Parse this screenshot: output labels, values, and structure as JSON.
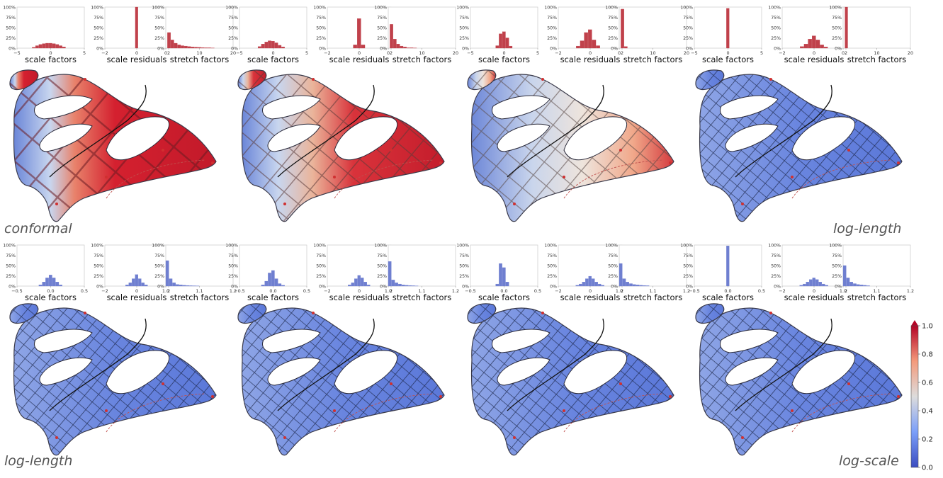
{
  "labels": {
    "top_left": "conformal",
    "top_right": "log-length",
    "bottom_left": "log-length",
    "bottom_right": "log-scale"
  },
  "colors": {
    "red": "#c0414b",
    "blue": "#6f7fd0",
    "axis": "#9a9a9a"
  },
  "colorbar": {
    "ticks": [
      "0.0",
      "0.2",
      "0.4",
      "0.6",
      "0.8",
      "1.0"
    ],
    "colormap": "coolwarm"
  },
  "chart_data": [
    {
      "type": "bar",
      "panel": "row1-set1",
      "title": "scale factors",
      "color": "red",
      "ylim": [
        0,
        1
      ],
      "yticks": [
        "0%",
        "25%",
        "50%",
        "75%",
        "100%"
      ],
      "xlim": [
        -5,
        5
      ],
      "xticks": [
        "−5",
        "0",
        "5"
      ],
      "bins": [
        -2.5,
        -2,
        -1.5,
        -1,
        -0.5,
        0,
        0.5,
        1,
        1.5,
        2
      ],
      "values": [
        0.02,
        0.06,
        0.09,
        0.11,
        0.12,
        0.12,
        0.11,
        0.09,
        0.06,
        0.03
      ]
    },
    {
      "type": "bar",
      "panel": "row1-set1",
      "title": "scale residuals",
      "color": "red",
      "ylim": [
        0,
        1
      ],
      "yticks": [
        "0%",
        "25%",
        "50%",
        "75%",
        "100%"
      ],
      "xlim": [
        -2,
        2
      ],
      "xticks": [
        "−2",
        "0",
        "2"
      ],
      "bins": [
        0
      ],
      "values": [
        1.0
      ]
    },
    {
      "type": "bar",
      "panel": "row1-set1",
      "title": "stretch factors",
      "color": "red",
      "ylim": [
        0,
        1
      ],
      "yticks": [
        "0%",
        "25%",
        "50%",
        "75%",
        "100%"
      ],
      "xlim": [
        0,
        20
      ],
      "xticks": [
        "0",
        "10",
        "20"
      ],
      "bins": [
        1,
        2,
        3,
        4,
        5,
        6,
        7,
        8,
        9,
        10,
        11,
        12,
        13,
        14
      ],
      "values": [
        0.38,
        0.2,
        0.12,
        0.08,
        0.06,
        0.05,
        0.04,
        0.03,
        0.025,
        0.02,
        0.015,
        0.01,
        0.01,
        0.005
      ]
    },
    {
      "type": "bar",
      "panel": "row1-set2",
      "title": "scale factors",
      "color": "red",
      "ylim": [
        0,
        1
      ],
      "yticks": [
        "0%",
        "25%",
        "50%",
        "75%",
        "100%"
      ],
      "xlim": [
        -5,
        5
      ],
      "xticks": [
        "−5",
        "0",
        "5"
      ],
      "bins": [
        -2,
        -1.5,
        -1,
        -0.5,
        0,
        0.5,
        1,
        1.5
      ],
      "values": [
        0.04,
        0.1,
        0.15,
        0.18,
        0.17,
        0.13,
        0.07,
        0.03
      ]
    },
    {
      "type": "bar",
      "panel": "row1-set2",
      "title": "scale residuals",
      "color": "red",
      "ylim": [
        0,
        1
      ],
      "yticks": [
        "0%",
        "25%",
        "50%",
        "75%",
        "100%"
      ],
      "xlim": [
        -2,
        2
      ],
      "xticks": [
        "−2",
        "0",
        "2"
      ],
      "bins": [
        -0.25,
        0,
        0.25
      ],
      "values": [
        0.08,
        0.72,
        0.08
      ]
    },
    {
      "type": "bar",
      "panel": "row1-set2",
      "title": "stretch factors",
      "color": "red",
      "ylim": [
        0,
        1
      ],
      "yticks": [
        "0%",
        "25%",
        "50%",
        "75%",
        "100%"
      ],
      "xlim": [
        0,
        20
      ],
      "xticks": [
        "0",
        "10",
        "20"
      ],
      "bins": [
        1,
        2,
        3,
        4,
        5,
        6,
        7,
        8
      ],
      "values": [
        0.58,
        0.22,
        0.1,
        0.05,
        0.03,
        0.01,
        0.01,
        0.005
      ]
    },
    {
      "type": "bar",
      "panel": "row1-set3",
      "title": "scale factors",
      "color": "red",
      "ylim": [
        0,
        1
      ],
      "yticks": [
        "0%",
        "25%",
        "50%",
        "75%",
        "100%"
      ],
      "xlim": [
        -5,
        5
      ],
      "xticks": [
        "−5",
        "0",
        "5"
      ],
      "bins": [
        -1,
        -0.5,
        0,
        0.5,
        1
      ],
      "values": [
        0.06,
        0.35,
        0.4,
        0.25,
        0.05
      ]
    },
    {
      "type": "bar",
      "panel": "row1-set3",
      "title": "scale residuals",
      "color": "red",
      "ylim": [
        0,
        1
      ],
      "yticks": [
        "0%",
        "25%",
        "50%",
        "75%",
        "100%"
      ],
      "xlim": [
        -2,
        2
      ],
      "xticks": [
        "−2",
        "0",
        "2"
      ],
      "bins": [
        -0.75,
        -0.5,
        -0.25,
        0,
        0.25,
        0.5
      ],
      "values": [
        0.05,
        0.18,
        0.38,
        0.45,
        0.2,
        0.06
      ]
    },
    {
      "type": "bar",
      "panel": "row1-set3",
      "title": "stretch factors",
      "color": "red",
      "ylim": [
        0,
        1
      ],
      "yticks": [
        "0%",
        "25%",
        "50%",
        "75%",
        "100%"
      ],
      "xlim": [
        0,
        20
      ],
      "xticks": [
        "0",
        "10",
        "20"
      ],
      "bins": [
        1,
        2
      ],
      "values": [
        0.95,
        0.04
      ]
    },
    {
      "type": "bar",
      "panel": "row1-set4",
      "title": "scale factors",
      "color": "red",
      "ylim": [
        0,
        1
      ],
      "yticks": [
        "0%",
        "25%",
        "50%",
        "75%",
        "100%"
      ],
      "xlim": [
        -5,
        5
      ],
      "xticks": [
        "−5",
        "0",
        "5"
      ],
      "bins": [
        0
      ],
      "values": [
        0.97
      ]
    },
    {
      "type": "bar",
      "panel": "row1-set4",
      "title": "scale residuals",
      "color": "red",
      "ylim": [
        0,
        1
      ],
      "yticks": [
        "0%",
        "25%",
        "50%",
        "75%",
        "100%"
      ],
      "xlim": [
        -2,
        2
      ],
      "xticks": [
        "−2",
        "0",
        "2"
      ],
      "bins": [
        -0.75,
        -0.5,
        -0.25,
        0,
        0.25,
        0.5,
        0.75
      ],
      "values": [
        0.04,
        0.1,
        0.22,
        0.3,
        0.2,
        0.08,
        0.03
      ]
    },
    {
      "type": "bar",
      "panel": "row1-set4",
      "title": "stretch factors",
      "color": "red",
      "ylim": [
        0,
        1
      ],
      "yticks": [
        "0%",
        "25%",
        "50%",
        "75%",
        "100%"
      ],
      "xlim": [
        0,
        20
      ],
      "xticks": [
        "0",
        "10",
        "20"
      ],
      "bins": [
        1
      ],
      "values": [
        1.0
      ]
    },
    {
      "type": "bar",
      "panel": "row2-set1",
      "title": "scale factors",
      "color": "blue",
      "ylim": [
        0,
        1
      ],
      "yticks": [
        "0%",
        "25%",
        "50%",
        "75%",
        "100%"
      ],
      "xlim": [
        -0.5,
        0.5
      ],
      "xticks": [
        "−0.5",
        "0.0",
        "0.5"
      ],
      "bins": [
        -0.15,
        -0.1,
        -0.05,
        0,
        0.05,
        0.1,
        0.15
      ],
      "values": [
        0.03,
        0.1,
        0.2,
        0.27,
        0.2,
        0.1,
        0.03
      ]
    },
    {
      "type": "bar",
      "panel": "row2-set1",
      "title": "scale residuals",
      "color": "blue",
      "ylim": [
        0,
        1
      ],
      "yticks": [
        "0%",
        "25%",
        "50%",
        "75%",
        "100%"
      ],
      "xlim": [
        -2,
        2
      ],
      "xticks": [
        "−2",
        "0",
        "2"
      ],
      "bins": [
        -0.6,
        -0.4,
        -0.2,
        0,
        0.2,
        0.4,
        0.6
      ],
      "values": [
        0.03,
        0.08,
        0.18,
        0.28,
        0.18,
        0.08,
        0.03
      ]
    },
    {
      "type": "bar",
      "panel": "row2-set1",
      "title": "stretch factors",
      "color": "blue",
      "ylim": [
        0,
        1
      ],
      "yticks": [
        "0%",
        "25%",
        "50%",
        "75%",
        "100%"
      ],
      "xlim": [
        1.0,
        1.2
      ],
      "xticks": [
        "1.0",
        "1.1",
        "1.2"
      ],
      "bins": [
        1.005,
        1.015,
        1.025,
        1.035,
        1.045,
        1.055,
        1.065,
        1.075,
        1.085,
        1.095
      ],
      "values": [
        0.62,
        0.18,
        0.08,
        0.04,
        0.03,
        0.02,
        0.015,
        0.01,
        0.008,
        0.005
      ]
    },
    {
      "type": "bar",
      "panel": "row2-set2",
      "title": "scale factors",
      "color": "blue",
      "ylim": [
        0,
        1
      ],
      "yticks": [
        "0%",
        "25%",
        "50%",
        "75%",
        "100%"
      ],
      "xlim": [
        -0.5,
        0.5
      ],
      "xticks": [
        "−0.5",
        "0.0",
        "0.5"
      ],
      "bins": [
        -0.15,
        -0.1,
        -0.05,
        0,
        0.05,
        0.1,
        0.15
      ],
      "values": [
        0.03,
        0.12,
        0.32,
        0.38,
        0.18,
        0.06,
        0.02
      ]
    },
    {
      "type": "bar",
      "panel": "row2-set2",
      "title": "scale residuals",
      "color": "blue",
      "ylim": [
        0,
        1
      ],
      "yticks": [
        "0%",
        "25%",
        "50%",
        "75%",
        "100%"
      ],
      "xlim": [
        -2,
        2
      ],
      "xticks": [
        "−2",
        "0",
        "2"
      ],
      "bins": [
        -0.6,
        -0.4,
        -0.2,
        0,
        0.2,
        0.4,
        0.6
      ],
      "values": [
        0.03,
        0.08,
        0.18,
        0.26,
        0.2,
        0.1,
        0.03
      ]
    },
    {
      "type": "bar",
      "panel": "row2-set2",
      "title": "stretch factors",
      "color": "blue",
      "ylim": [
        0,
        1
      ],
      "yticks": [
        "0%",
        "25%",
        "50%",
        "75%",
        "100%"
      ],
      "xlim": [
        1.0,
        1.2
      ],
      "xticks": [
        "1.0",
        "1.1",
        "1.2"
      ],
      "bins": [
        1.005,
        1.015,
        1.025,
        1.035,
        1.045,
        1.055,
        1.065,
        1.075,
        1.085
      ],
      "values": [
        0.6,
        0.15,
        0.08,
        0.05,
        0.03,
        0.02,
        0.015,
        0.01,
        0.005
      ]
    },
    {
      "type": "bar",
      "panel": "row2-set3",
      "title": "scale factors",
      "color": "blue",
      "ylim": [
        0,
        1
      ],
      "yticks": [
        "0%",
        "25%",
        "50%",
        "75%",
        "100%"
      ],
      "xlim": [
        -0.5,
        0.5
      ],
      "xticks": [
        "−0.5",
        "0.0",
        "0.5"
      ],
      "bins": [
        -0.1,
        -0.05,
        0,
        0.05
      ],
      "values": [
        0.05,
        0.55,
        0.45,
        0.1
      ]
    },
    {
      "type": "bar",
      "panel": "row2-set3",
      "title": "scale residuals",
      "color": "blue",
      "ylim": [
        0,
        1
      ],
      "yticks": [
        "0%",
        "25%",
        "50%",
        "75%",
        "100%"
      ],
      "xlim": [
        -2,
        2
      ],
      "xticks": [
        "−2",
        "0",
        "2"
      ],
      "bins": [
        -0.8,
        -0.6,
        -0.4,
        -0.2,
        0,
        0.2,
        0.4,
        0.6,
        0.8
      ],
      "values": [
        0.02,
        0.05,
        0.1,
        0.18,
        0.24,
        0.18,
        0.1,
        0.05,
        0.02
      ]
    },
    {
      "type": "bar",
      "panel": "row2-set3",
      "title": "stretch factors",
      "color": "blue",
      "ylim": [
        0,
        1
      ],
      "yticks": [
        "0%",
        "25%",
        "50%",
        "75%",
        "100%"
      ],
      "xlim": [
        1.0,
        1.2
      ],
      "xticks": [
        "1.0",
        "1.1",
        "1.2"
      ],
      "bins": [
        1.005,
        1.015,
        1.025,
        1.035,
        1.045,
        1.055,
        1.065,
        1.075,
        1.085
      ],
      "values": [
        0.55,
        0.18,
        0.1,
        0.06,
        0.04,
        0.03,
        0.02,
        0.015,
        0.01
      ]
    },
    {
      "type": "bar",
      "panel": "row2-set4",
      "title": "scale factors",
      "color": "blue",
      "ylim": [
        0,
        1
      ],
      "yticks": [
        "0%",
        "25%",
        "50%",
        "75%",
        "100%"
      ],
      "xlim": [
        -0.5,
        0.5
      ],
      "xticks": [
        "−0.5",
        "0.0",
        "0.5"
      ],
      "bins": [
        0
      ],
      "values": [
        0.98
      ]
    },
    {
      "type": "bar",
      "panel": "row2-set4",
      "title": "scale residuals",
      "color": "blue",
      "ylim": [
        0,
        1
      ],
      "yticks": [
        "0%",
        "25%",
        "50%",
        "75%",
        "100%"
      ],
      "xlim": [
        -2,
        2
      ],
      "xticks": [
        "−2",
        "0",
        "2"
      ],
      "bins": [
        -0.8,
        -0.6,
        -0.4,
        -0.2,
        0,
        0.2,
        0.4,
        0.6,
        0.8
      ],
      "values": [
        0.02,
        0.05,
        0.1,
        0.16,
        0.2,
        0.16,
        0.1,
        0.05,
        0.02
      ]
    },
    {
      "type": "bar",
      "panel": "row2-set4",
      "title": "stretch factors",
      "color": "blue",
      "ylim": [
        0,
        1
      ],
      "yticks": [
        "0%",
        "25%",
        "50%",
        "75%",
        "100%"
      ],
      "xlim": [
        1.0,
        1.2
      ],
      "xticks": [
        "1.0",
        "1.1",
        "1.2"
      ],
      "bins": [
        1.005,
        1.015,
        1.025,
        1.035,
        1.045,
        1.055,
        1.065,
        1.075
      ],
      "values": [
        0.5,
        0.2,
        0.1,
        0.06,
        0.04,
        0.03,
        0.02,
        0.01
      ]
    }
  ]
}
